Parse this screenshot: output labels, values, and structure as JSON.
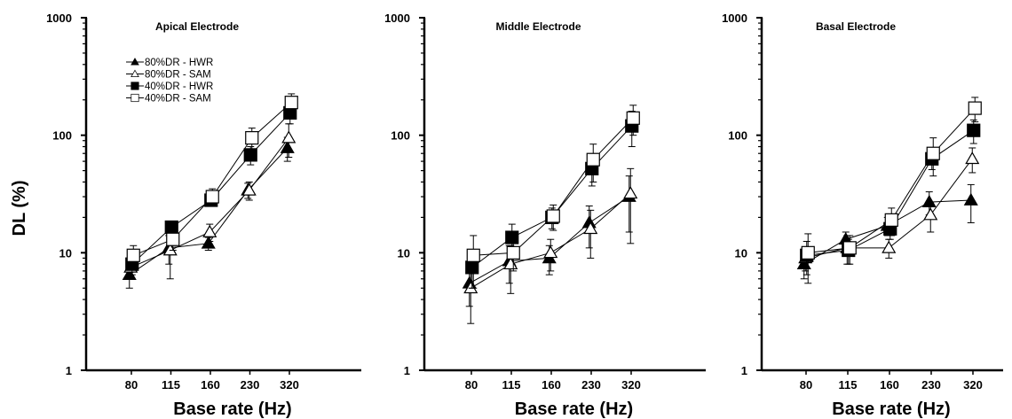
{
  "figure": {
    "ylabel": "DL (%)"
  },
  "chart_data": [
    {
      "type": "line",
      "title": "Apical Electrode",
      "xlabel": "Base rate (Hz)",
      "ylabel": "DL (%)",
      "yscale": "log",
      "ylim": [
        1,
        1000
      ],
      "yticks": [
        1,
        10,
        100,
        1000
      ],
      "categories": [
        "80",
        "115",
        "160",
        "230",
        "320"
      ],
      "legend_position": "top-left",
      "series": [
        {
          "name": "80%DR - HWR",
          "marker": "filled-triangle",
          "values": [
            6.5,
            11,
            12,
            34,
            78
          ],
          "err": [
            1.5,
            3,
            1.5,
            5,
            18
          ]
        },
        {
          "name": "80%DR - SAM",
          "marker": "open-triangle",
          "values": [
            7.5,
            10.5,
            15,
            34,
            95
          ],
          "err": [
            1.5,
            4.5,
            2.5,
            6,
            30
          ]
        },
        {
          "name": "40%DR - HWR",
          "marker": "filled-square",
          "values": [
            8,
            16.5,
            28,
            68,
            155
          ],
          "err": [
            1.5,
            2,
            3,
            12,
            30
          ]
        },
        {
          "name": "40%DR - SAM",
          "marker": "open-square",
          "values": [
            9.5,
            13,
            30,
            95,
            190
          ],
          "err": [
            2,
            2.5,
            5,
            20,
            35
          ]
        }
      ]
    },
    {
      "type": "line",
      "title": "Middle Electrode",
      "xlabel": "Base rate (Hz)",
      "ylabel": "",
      "yscale": "log",
      "ylim": [
        1,
        1000
      ],
      "yticks": [
        1,
        10,
        100,
        1000
      ],
      "categories": [
        "80",
        "115",
        "160",
        "230",
        "320"
      ],
      "series": [
        {
          "name": "80%DR - HWR",
          "marker": "filled-triangle",
          "values": [
            5.5,
            8.5,
            9,
            18,
            30
          ],
          "err": [
            2,
            3,
            2.5,
            7,
            15
          ]
        },
        {
          "name": "80%DR - SAM",
          "marker": "open-triangle",
          "values": [
            5,
            8,
            10,
            16,
            32
          ],
          "err": [
            2.5,
            3.5,
            3,
            7,
            20
          ]
        },
        {
          "name": "40%DR - HWR",
          "marker": "filled-square",
          "values": [
            7.5,
            13.5,
            20,
            52,
            120
          ],
          "err": [
            2.5,
            4,
            4,
            15,
            40
          ]
        },
        {
          "name": "40%DR - SAM",
          "marker": "open-square",
          "values": [
            9.5,
            10,
            20.5,
            62,
            140
          ],
          "err": [
            4.5,
            3,
            5,
            22,
            40
          ]
        }
      ]
    },
    {
      "type": "line",
      "title": "Basal Electrode",
      "xlabel": "Base rate (Hz)",
      "ylabel": "",
      "yscale": "log",
      "ylim": [
        1,
        1000
      ],
      "yticks": [
        1,
        10,
        100,
        1000
      ],
      "categories": [
        "80",
        "115",
        "160",
        "230",
        "320"
      ],
      "series": [
        {
          "name": "80%DR - HWR",
          "marker": "filled-triangle",
          "values": [
            8,
            13,
            17,
            27,
            28
          ],
          "err": [
            2,
            2,
            3,
            6,
            10
          ]
        },
        {
          "name": "80%DR - SAM",
          "marker": "open-triangle",
          "values": [
            9,
            11,
            11,
            21,
            63
          ],
          "err": [
            2,
            3,
            2,
            6,
            15
          ]
        },
        {
          "name": "40%DR - HWR",
          "marker": "filled-square",
          "values": [
            9.5,
            10.5,
            16,
            63,
            110
          ],
          "err": [
            3,
            2.5,
            3,
            12,
            25
          ]
        },
        {
          "name": "40%DR - SAM",
          "marker": "open-square",
          "values": [
            10,
            11,
            19,
            70,
            170
          ],
          "err": [
            4.5,
            3,
            5,
            25,
            40
          ]
        }
      ]
    }
  ]
}
